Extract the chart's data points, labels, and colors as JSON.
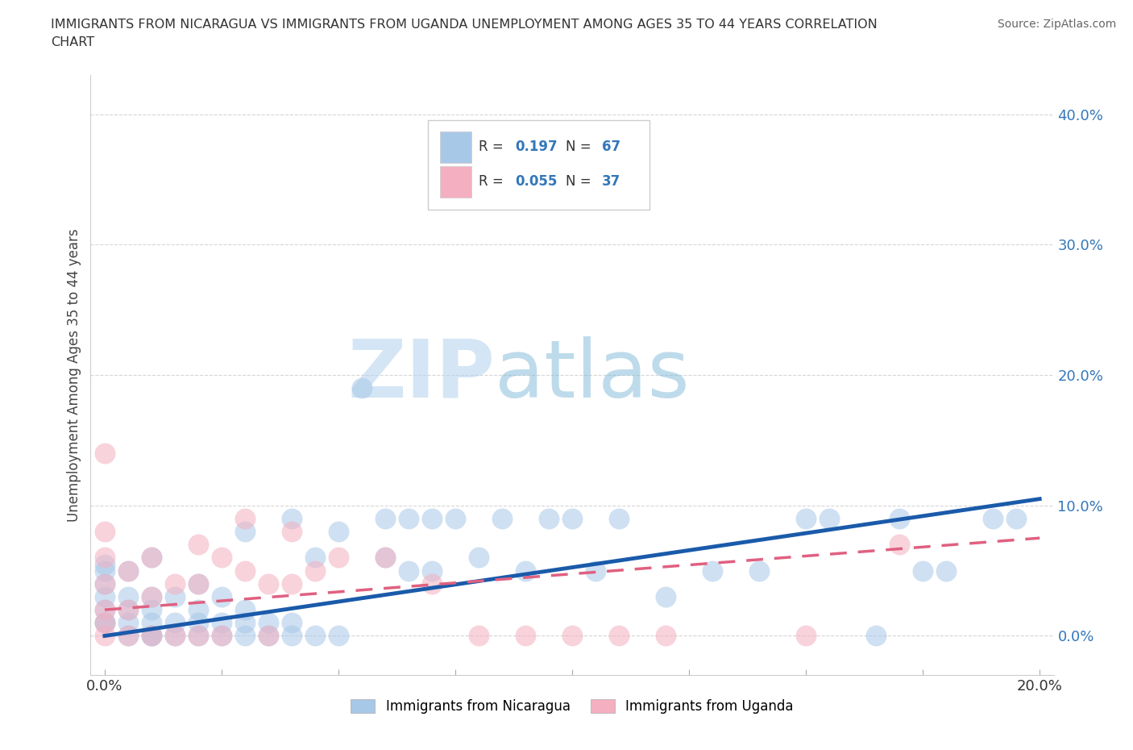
{
  "title_line1": "IMMIGRANTS FROM NICARAGUA VS IMMIGRANTS FROM UGANDA UNEMPLOYMENT AMONG AGES 35 TO 44 YEARS CORRELATION",
  "title_line2": "CHART",
  "source_text": "Source: ZipAtlas.com",
  "ylabel": "Unemployment Among Ages 35 to 44 years",
  "watermark_zip": "ZIP",
  "watermark_atlas": "atlas",
  "nicaragua_R": 0.197,
  "nicaragua_N": 67,
  "uganda_R": 0.055,
  "uganda_N": 37,
  "xlim": [
    -0.003,
    0.203
  ],
  "ylim": [
    -0.03,
    0.43
  ],
  "xticks": [
    0.0,
    0.025,
    0.05,
    0.075,
    0.1,
    0.125,
    0.15,
    0.175,
    0.2
  ],
  "yticks": [
    0.0,
    0.1,
    0.2,
    0.3,
    0.4
  ],
  "ytick_labels": [
    "0.0%",
    "10.0%",
    "20.0%",
    "30.0%",
    "40.0%"
  ],
  "xtick_labels": [
    "0.0%",
    "",
    "",
    "",
    "",
    "",
    "",
    "",
    "20.0%"
  ],
  "nicaragua_color": "#a8c8e8",
  "uganda_color": "#f4afc0",
  "nicaragua_line_color": "#1a5aaa",
  "uganda_line_color": "#e06080",
  "background_color": "#ffffff",
  "grid_color": "#cccccc",
  "nicaragua_x": [
    0.0,
    0.0,
    0.0,
    0.0,
    0.0,
    0.0,
    0.0,
    0.005,
    0.005,
    0.005,
    0.005,
    0.005,
    0.01,
    0.01,
    0.01,
    0.01,
    0.01,
    0.01,
    0.015,
    0.015,
    0.015,
    0.02,
    0.02,
    0.02,
    0.02,
    0.025,
    0.025,
    0.025,
    0.03,
    0.03,
    0.03,
    0.03,
    0.035,
    0.035,
    0.04,
    0.04,
    0.04,
    0.045,
    0.045,
    0.05,
    0.05,
    0.055,
    0.06,
    0.06,
    0.065,
    0.065,
    0.07,
    0.07,
    0.075,
    0.08,
    0.085,
    0.09,
    0.095,
    0.1,
    0.105,
    0.11,
    0.12,
    0.13,
    0.14,
    0.15,
    0.155,
    0.17,
    0.175,
    0.18,
    0.19,
    0.195,
    0.165
  ],
  "nicaragua_y": [
    0.01,
    0.01,
    0.02,
    0.03,
    0.04,
    0.05,
    0.055,
    0.0,
    0.01,
    0.02,
    0.03,
    0.05,
    0.0,
    0.0,
    0.01,
    0.02,
    0.03,
    0.06,
    0.0,
    0.01,
    0.03,
    0.0,
    0.01,
    0.02,
    0.04,
    0.0,
    0.01,
    0.03,
    0.0,
    0.01,
    0.02,
    0.08,
    0.0,
    0.01,
    0.0,
    0.01,
    0.09,
    0.0,
    0.06,
    0.0,
    0.08,
    0.19,
    0.06,
    0.09,
    0.05,
    0.09,
    0.05,
    0.09,
    0.09,
    0.06,
    0.09,
    0.05,
    0.09,
    0.09,
    0.05,
    0.09,
    0.03,
    0.05,
    0.05,
    0.09,
    0.09,
    0.09,
    0.05,
    0.05,
    0.09,
    0.09,
    0.0
  ],
  "uganda_x": [
    0.0,
    0.0,
    0.0,
    0.0,
    0.0,
    0.0,
    0.0,
    0.005,
    0.005,
    0.005,
    0.01,
    0.01,
    0.01,
    0.015,
    0.015,
    0.02,
    0.02,
    0.02,
    0.025,
    0.025,
    0.03,
    0.03,
    0.035,
    0.035,
    0.04,
    0.04,
    0.045,
    0.05,
    0.06,
    0.07,
    0.08,
    0.09,
    0.1,
    0.11,
    0.12,
    0.15,
    0.17
  ],
  "uganda_y": [
    0.0,
    0.01,
    0.02,
    0.04,
    0.06,
    0.08,
    0.14,
    0.0,
    0.02,
    0.05,
    0.0,
    0.03,
    0.06,
    0.0,
    0.04,
    0.0,
    0.04,
    0.07,
    0.0,
    0.06,
    0.05,
    0.09,
    0.0,
    0.04,
    0.04,
    0.08,
    0.05,
    0.06,
    0.06,
    0.04,
    0.0,
    0.0,
    0.0,
    0.0,
    0.0,
    0.0,
    0.07
  ]
}
